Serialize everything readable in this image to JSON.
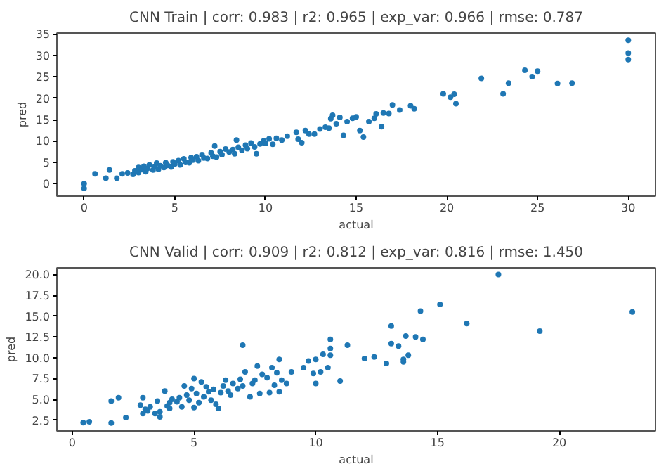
{
  "chart_data": [
    {
      "type": "scatter",
      "title": "CNN Train | corr: 0.983 | r2: 0.965 | exp_var: 0.966 | rmse: 0.787",
      "xlabel": "actual",
      "ylabel": "pred",
      "xlim": [
        -1.5,
        31.5
      ],
      "ylim": [
        -2.9,
        35.2
      ],
      "xticks": [
        0,
        5,
        10,
        15,
        20,
        25,
        30
      ],
      "yticks": [
        0,
        5,
        10,
        15,
        20,
        25,
        30,
        35
      ],
      "grid": false,
      "marker": "circle",
      "series": [
        {
          "color": "#1f77b4",
          "x": [
            0,
            0,
            0.6,
            1.2,
            1.4,
            1.8,
            2.1,
            2.4,
            2.7,
            2.8,
            3.0,
            3.0,
            3.2,
            3.3,
            3.4,
            3.5,
            3.6,
            3.8,
            3.9,
            4.0,
            4.1,
            4.2,
            4.4,
            4.5,
            4.6,
            4.8,
            4.9,
            5.0,
            5.2,
            5.3,
            5.5,
            5.6,
            5.8,
            5.9,
            6.0,
            6.2,
            6.3,
            6.5,
            6.6,
            6.8,
            7.0,
            7.1,
            7.2,
            7.3,
            7.5,
            7.6,
            7.8,
            8.0,
            8.2,
            8.3,
            8.4,
            8.5,
            8.7,
            8.9,
            9.0,
            9.2,
            9.4,
            9.5,
            9.7,
            9.9,
            10.0,
            10.2,
            10.4,
            10.6,
            10.9,
            11.2,
            11.7,
            11.8,
            12.0,
            12.2,
            12.4,
            12.7,
            13.0,
            13.3,
            13.5,
            13.6,
            13.7,
            13.9,
            14.1,
            14.3,
            14.5,
            14.8,
            15.0,
            15.2,
            15.4,
            15.7,
            16.0,
            16.1,
            16.4,
            16.5,
            16.8,
            17.0,
            17.4,
            18.0,
            18.2,
            19.8,
            20.2,
            20.4,
            20.5,
            21.9,
            23.1,
            23.4,
            24.3,
            24.7,
            25.0,
            26.1,
            26.9,
            30,
            30,
            30
          ],
          "values": [
            0,
            -1.1,
            2.3,
            1.3,
            3.2,
            1.3,
            2.3,
            2.5,
            2.2,
            3.0,
            3.8,
            2.6,
            3.3,
            4.1,
            2.8,
            3.6,
            4.4,
            3.2,
            4.0,
            4.8,
            3.4,
            4.2,
            3.8,
            4.9,
            4.3,
            3.9,
            5.1,
            4.6,
            5.4,
            4.4,
            5.8,
            5.0,
            4.9,
            6.1,
            5.5,
            6.3,
            5.4,
            6.8,
            6.0,
            5.9,
            7.2,
            6.4,
            8.8,
            6.2,
            7.5,
            6.8,
            8.1,
            7.4,
            8.0,
            7.0,
            10.2,
            8.5,
            7.8,
            9.0,
            8.2,
            9.5,
            8.6,
            7.0,
            9.3,
            10.0,
            9.4,
            10.5,
            9.2,
            10.6,
            10.2,
            11.1,
            12.0,
            10.4,
            9.6,
            12.4,
            11.6,
            11.6,
            12.8,
            13.2,
            13.0,
            15.2,
            16.0,
            14.0,
            15.5,
            11.3,
            14.5,
            15.3,
            15.6,
            12.4,
            10.9,
            14.5,
            15.3,
            16.3,
            13.3,
            16.5,
            16.4,
            18.4,
            17.2,
            18.2,
            17.5,
            21.0,
            20.2,
            20.9,
            18.7,
            24.6,
            21.0,
            23.5,
            26.5,
            25.0,
            26.3,
            23.4,
            23.5,
            33.5,
            30.5,
            29.0
          ]
        }
      ]
    },
    {
      "type": "scatter",
      "title": "CNN Valid | corr: 0.909 | r2: 0.812 | exp_var: 0.816 | rmse: 1.450",
      "xlabel": "actual",
      "ylabel": "pred",
      "xlim": [
        -0.63,
        23.95
      ],
      "ylim": [
        1.2,
        20.8
      ],
      "xticks": [
        0,
        5,
        10,
        15,
        20
      ],
      "yticks": [
        {
          "value": 2.5,
          "label": "2.5"
        },
        {
          "value": 5,
          "label": "5.0"
        },
        {
          "value": 7.5,
          "label": "7.5"
        },
        {
          "value": 10,
          "label": "10.0"
        },
        {
          "value": 12.5,
          "label": "12.5"
        },
        {
          "value": 15,
          "label": "15.0"
        },
        {
          "value": 17.5,
          "label": "17.5"
        },
        {
          "value": 20,
          "label": "20.0"
        }
      ],
      "grid": false,
      "marker": "circle",
      "series": [
        {
          "color": "#1f77b4",
          "x": [
            0.45,
            0.7,
            1.6,
            1.6,
            1.9,
            2.2,
            2.8,
            2.9,
            2.9,
            3.0,
            3.1,
            3.2,
            3.4,
            3.5,
            3.6,
            3.6,
            3.8,
            3.9,
            4.0,
            4.0,
            4.1,
            4.3,
            4.4,
            4.5,
            4.6,
            4.7,
            4.8,
            4.9,
            5.0,
            5.0,
            5.1,
            5.2,
            5.3,
            5.4,
            5.5,
            5.6,
            5.7,
            5.8,
            5.9,
            6.0,
            6.1,
            6.2,
            6.3,
            6.4,
            6.5,
            6.6,
            6.8,
            6.9,
            7.0,
            7.0,
            7.1,
            7.3,
            7.4,
            7.5,
            7.6,
            7.7,
            7.8,
            8.0,
            8.1,
            8.2,
            8.3,
            8.4,
            8.5,
            8.5,
            8.6,
            8.8,
            9.0,
            9.5,
            9.7,
            9.9,
            10.0,
            10.0,
            10.2,
            10.3,
            10.5,
            10.6,
            10.6,
            10.6,
            11.0,
            11.3,
            12.0,
            12.4,
            12.9,
            13.1,
            13.1,
            13.4,
            13.6,
            13.6,
            13.7,
            13.8,
            14.1,
            14.3,
            14.4,
            15.1,
            16.2,
            17.5,
            19.2,
            23.0
          ],
          "values": [
            2.2,
            2.3,
            2.15,
            4.8,
            5.2,
            2.8,
            4.3,
            5.2,
            3.3,
            3.8,
            3.6,
            4.1,
            3.3,
            4.8,
            2.9,
            3.5,
            6.0,
            4.2,
            4.6,
            3.9,
            5.0,
            4.7,
            5.2,
            4.1,
            6.6,
            5.5,
            4.9,
            6.3,
            7.5,
            4.0,
            5.7,
            4.6,
            7.1,
            5.3,
            6.5,
            5.9,
            4.9,
            6.2,
            4.4,
            3.9,
            5.8,
            6.6,
            7.3,
            6.0,
            5.5,
            6.9,
            6.3,
            7.4,
            11.5,
            6.6,
            8.3,
            5.3,
            6.9,
            7.3,
            9.0,
            5.7,
            8.0,
            7.6,
            5.8,
            8.8,
            6.7,
            8.2,
            9.8,
            5.9,
            7.3,
            6.9,
            8.3,
            8.8,
            9.6,
            8.1,
            6.9,
            9.8,
            8.3,
            10.4,
            8.8,
            10.3,
            11.1,
            12.2,
            7.2,
            11.5,
            9.9,
            10.1,
            9.3,
            11.7,
            13.8,
            11.4,
            9.5,
            9.8,
            12.6,
            10.3,
            12.5,
            15.6,
            12.2,
            16.4,
            14.1,
            20.0,
            13.2,
            15.5
          ]
        }
      ]
    }
  ]
}
